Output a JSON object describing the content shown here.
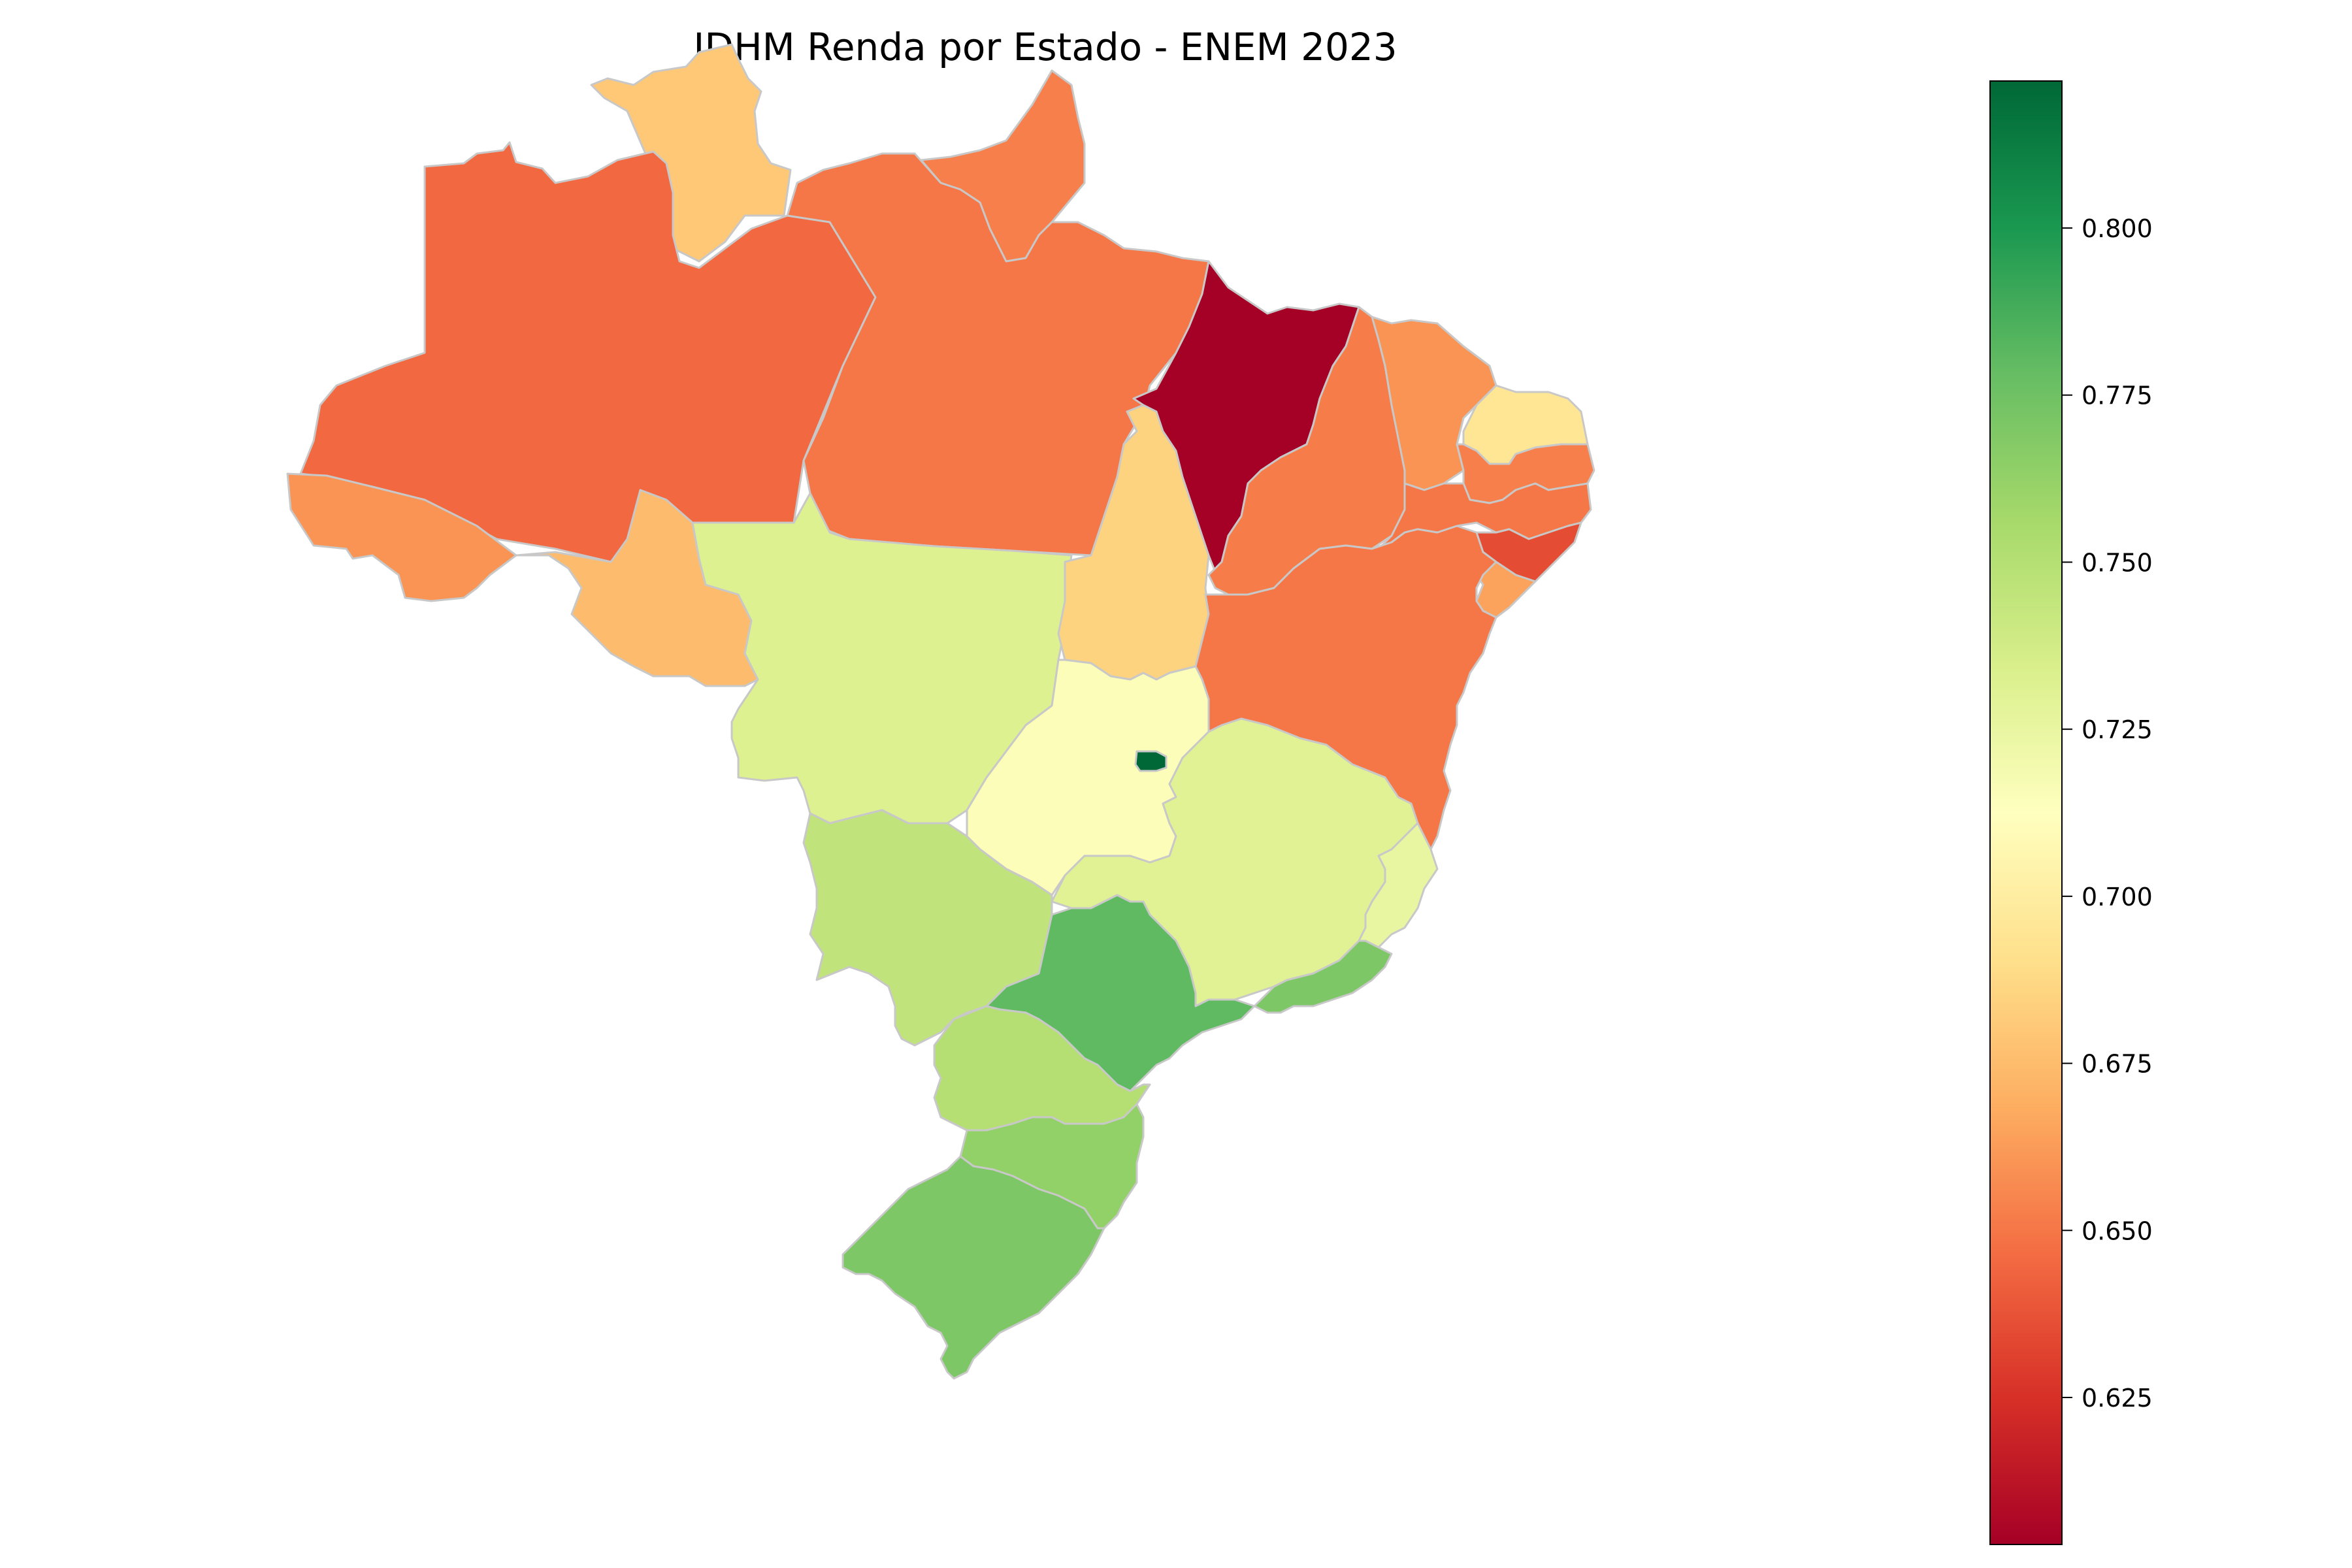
{
  "title": "IDHM Renda por Estado - ENEM 2023",
  "colorbar": {
    "colormap": "RdYlGn",
    "min": 0.603,
    "max": 0.822,
    "ticks": [
      "0.625",
      "0.650",
      "0.675",
      "0.700",
      "0.725",
      "0.750",
      "0.775",
      "0.800"
    ],
    "tick_values": [
      0.625,
      0.65,
      0.675,
      0.7,
      0.725,
      0.75,
      0.775,
      0.8
    ]
  },
  "colormap_stops": [
    [
      "0.00",
      "#a50026"
    ],
    [
      "0.10",
      "#d73027"
    ],
    [
      "0.20",
      "#f46d43"
    ],
    [
      "0.30",
      "#fdae61"
    ],
    [
      "0.40",
      "#fee08b"
    ],
    [
      "0.50",
      "#ffffbf"
    ],
    [
      "0.60",
      "#d9ef8b"
    ],
    [
      "0.70",
      "#a6d96a"
    ],
    [
      "0.80",
      "#66bd63"
    ],
    [
      "0.90",
      "#1a9850"
    ],
    [
      "1.00",
      "#006837"
    ]
  ],
  "chart_data": {
    "type": "choropleth",
    "value_label": "IDHM Renda",
    "states": [
      {
        "uf": "RR",
        "value": 0.68
      },
      {
        "uf": "AM",
        "value": 0.645
      },
      {
        "uf": "AP",
        "value": 0.653
      },
      {
        "uf": "PA",
        "value": 0.65
      },
      {
        "uf": "AC",
        "value": 0.66
      },
      {
        "uf": "RO",
        "value": 0.675
      },
      {
        "uf": "MT",
        "value": 0.732
      },
      {
        "uf": "TO",
        "value": 0.685
      },
      {
        "uf": "MA",
        "value": 0.603
      },
      {
        "uf": "PI",
        "value": 0.652
      },
      {
        "uf": "CE",
        "value": 0.66
      },
      {
        "uf": "RN",
        "value": 0.695
      },
      {
        "uf": "PB",
        "value": 0.653
      },
      {
        "uf": "PE",
        "value": 0.65
      },
      {
        "uf": "AL",
        "value": 0.635
      },
      {
        "uf": "SE",
        "value": 0.665
      },
      {
        "uf": "BA",
        "value": 0.65
      },
      {
        "uf": "GO",
        "value": 0.715
      },
      {
        "uf": "DF",
        "value": 0.822
      },
      {
        "uf": "MG",
        "value": 0.73
      },
      {
        "uf": "ES",
        "value": 0.725
      },
      {
        "uf": "RJ",
        "value": 0.77
      },
      {
        "uf": "SP",
        "value": 0.78
      },
      {
        "uf": "MS",
        "value": 0.745
      },
      {
        "uf": "PR",
        "value": 0.75
      },
      {
        "uf": "SC",
        "value": 0.763
      },
      {
        "uf": "RS",
        "value": 0.77
      }
    ]
  }
}
